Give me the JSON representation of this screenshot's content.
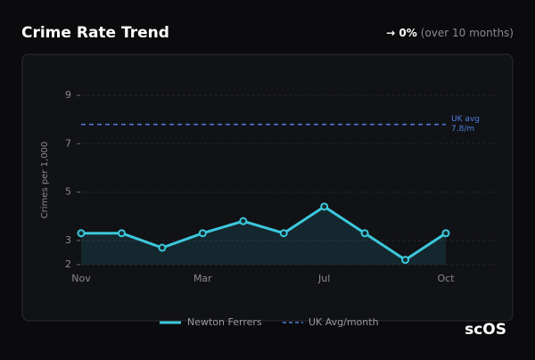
{
  "header": {
    "title": "Crime Rate Trend",
    "change": "→ 0%",
    "period": "(over 10 months)"
  },
  "chart_data": {
    "type": "line",
    "y_label": "Crimes per 1,000",
    "categories": [
      "Nov",
      null,
      null,
      "Mar",
      null,
      null,
      "Jul",
      null,
      null,
      "Oct"
    ],
    "series": [
      {
        "name": "Newton Ferrers",
        "color": "#3cc8dc",
        "values": [
          3.3,
          3.3,
          2.7,
          3.3,
          3.8,
          3.3,
          4.4,
          3.3,
          2.2,
          3.3
        ]
      }
    ],
    "reference": {
      "name": "UK Avg/month",
      "color": "#4f7fe0",
      "value": 7.8,
      "label_lines": [
        "UK avg",
        "7.8/m"
      ]
    },
    "ylim": [
      2,
      9
    ],
    "yticks": [
      2,
      3,
      5,
      7,
      9
    ],
    "grid": true,
    "area": true
  },
  "logo": "scOS"
}
